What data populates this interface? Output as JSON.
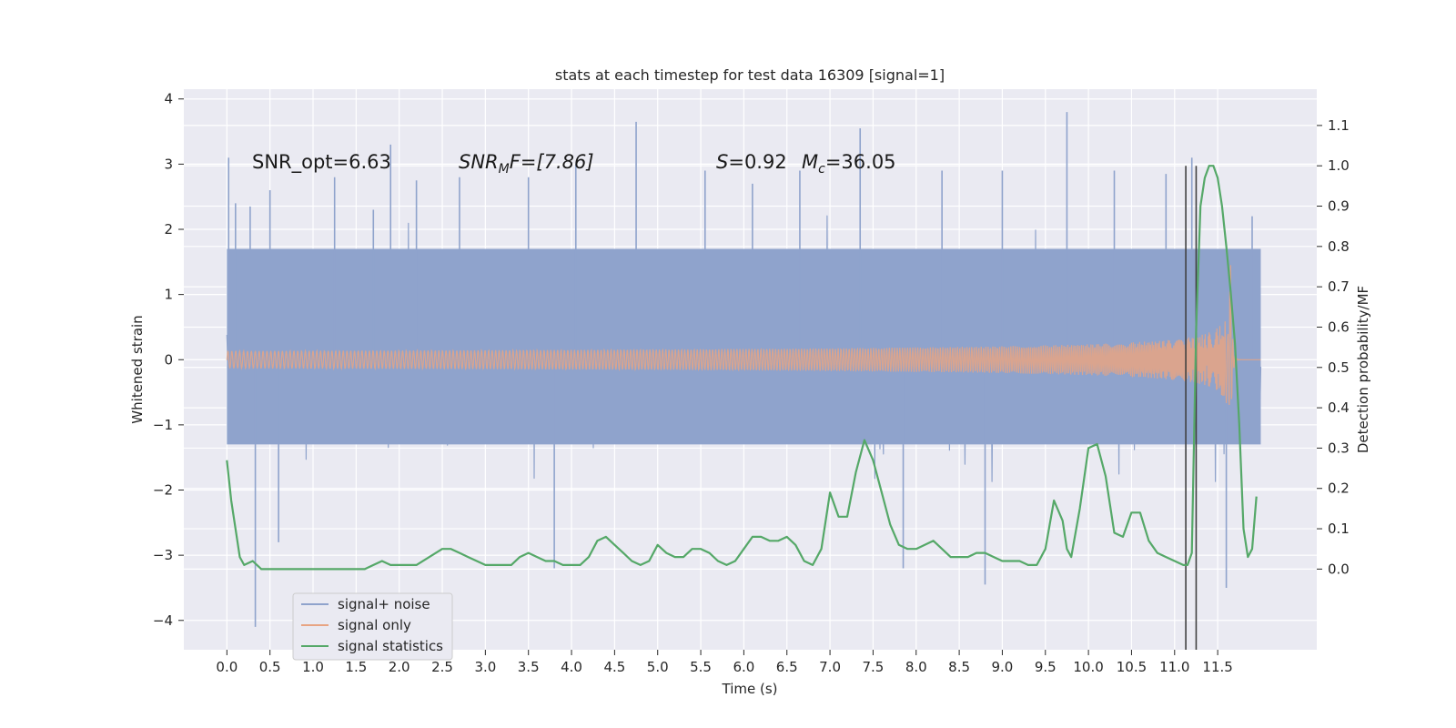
{
  "chart_data": {
    "type": "line",
    "title": "stats at each timestep for test data 16309 [signal=1]",
    "xlabel": "Time (s)",
    "ylabel_left": "Whitened strain",
    "ylabel_right": "Detection probability/MF",
    "xlim": [
      -0.5,
      12.65
    ],
    "ylim_left": [
      -4.45,
      4.15
    ],
    "ylim_right": [
      -0.2,
      1.19
    ],
    "x_ticks": [
      "0.0",
      "0.5",
      "1.0",
      "1.5",
      "2.0",
      "2.5",
      "3.0",
      "3.5",
      "4.0",
      "4.5",
      "5.0",
      "5.5",
      "6.0",
      "6.5",
      "7.0",
      "7.5",
      "8.0",
      "8.5",
      "9.0",
      "9.5",
      "10.0",
      "10.5",
      "11.0",
      "11.5"
    ],
    "y_ticks_left": [
      "−4",
      "−3",
      "−2",
      "−1",
      "0",
      "1",
      "2",
      "3",
      "4"
    ],
    "y_ticks_right": [
      "0.0",
      "0.1",
      "0.2",
      "0.3",
      "0.4",
      "0.5",
      "0.6",
      "0.7",
      "0.8",
      "0.9",
      "1.0",
      "1.1"
    ],
    "grid": true,
    "legend_position": "lower-left",
    "annotations": {
      "snr_opt": "SNR_opt=6.63",
      "snr_mf_main": "SNR",
      "snr_mf_sub": "M",
      "snr_mf_rest": "F=[7.86]",
      "s_main": "S",
      "s_rest": "=0.92",
      "mc_main": "M",
      "mc_sub": "c",
      "mc_rest": "=36.05"
    },
    "series": [
      {
        "name": "signal+ noise",
        "axis": "left",
        "color": "#8fa3cc",
        "x_range": [
          0.0,
          12.0
        ],
        "typical_band": [
          -1.3,
          1.7
        ],
        "peaks": [
          [
            0.02,
            3.1
          ],
          [
            0.1,
            2.4
          ],
          [
            0.27,
            2.35
          ],
          [
            0.33,
            -4.1
          ],
          [
            0.5,
            2.6
          ],
          [
            0.6,
            -2.8
          ],
          [
            1.25,
            2.8
          ],
          [
            1.7,
            2.3
          ],
          [
            1.9,
            3.3
          ],
          [
            2.2,
            2.75
          ],
          [
            2.7,
            2.8
          ],
          [
            3.5,
            2.8
          ],
          [
            3.8,
            -3.2
          ],
          [
            4.05,
            3.0
          ],
          [
            4.75,
            3.65
          ],
          [
            5.55,
            2.9
          ],
          [
            6.1,
            2.7
          ],
          [
            6.65,
            2.9
          ],
          [
            7.35,
            3.55
          ],
          [
            7.85,
            -3.2
          ],
          [
            8.3,
            2.9
          ],
          [
            8.8,
            -3.45
          ],
          [
            9.0,
            2.9
          ],
          [
            9.75,
            3.8
          ],
          [
            10.3,
            2.9
          ],
          [
            10.9,
            2.85
          ],
          [
            11.2,
            3.1
          ],
          [
            11.6,
            -3.5
          ],
          [
            11.9,
            2.2
          ]
        ]
      },
      {
        "name": "signal only",
        "axis": "left",
        "color": "#e8a483",
        "x_range": [
          0.0,
          12.0
        ],
        "chirp_peak_time": 11.65,
        "chirp_peak_amplitude": 1.45
      },
      {
        "name": "signal statistics",
        "axis": "right",
        "color": "#55a868",
        "x": [
          0.0,
          0.05,
          0.1,
          0.15,
          0.2,
          0.3,
          0.4,
          0.5,
          0.6,
          0.8,
          1.0,
          1.2,
          1.4,
          1.6,
          1.7,
          1.8,
          1.9,
          2.0,
          2.2,
          2.35,
          2.5,
          2.6,
          2.7,
          2.8,
          2.9,
          3.0,
          3.1,
          3.2,
          3.3,
          3.4,
          3.5,
          3.6,
          3.7,
          3.8,
          3.9,
          4.0,
          4.1,
          4.2,
          4.3,
          4.4,
          4.5,
          4.6,
          4.7,
          4.8,
          4.9,
          5.0,
          5.1,
          5.2,
          5.3,
          5.4,
          5.5,
          5.6,
          5.7,
          5.8,
          5.9,
          6.0,
          6.1,
          6.2,
          6.3,
          6.4,
          6.5,
          6.6,
          6.7,
          6.8,
          6.9,
          7.0,
          7.1,
          7.2,
          7.3,
          7.4,
          7.5,
          7.6,
          7.7,
          7.8,
          7.9,
          8.0,
          8.1,
          8.2,
          8.3,
          8.4,
          8.5,
          8.6,
          8.7,
          8.8,
          8.9,
          9.0,
          9.1,
          9.2,
          9.3,
          9.4,
          9.5,
          9.6,
          9.7,
          9.75,
          9.8,
          9.9,
          10.0,
          10.1,
          10.2,
          10.3,
          10.4,
          10.5,
          10.6,
          10.7,
          10.8,
          10.9,
          11.0,
          11.1,
          11.15,
          11.2,
          11.25,
          11.3,
          11.35,
          11.4,
          11.45,
          11.5,
          11.55,
          11.6,
          11.65,
          11.7,
          11.75,
          11.8,
          11.85,
          11.9,
          11.95
        ],
        "values": [
          0.27,
          0.17,
          0.1,
          0.03,
          0.01,
          0.02,
          0.0,
          0.0,
          0.0,
          0.0,
          0.0,
          0.0,
          0.0,
          0.0,
          0.01,
          0.02,
          0.01,
          0.01,
          0.01,
          0.03,
          0.05,
          0.05,
          0.04,
          0.03,
          0.02,
          0.01,
          0.01,
          0.01,
          0.01,
          0.03,
          0.04,
          0.03,
          0.02,
          0.02,
          0.01,
          0.01,
          0.01,
          0.03,
          0.07,
          0.08,
          0.06,
          0.04,
          0.02,
          0.01,
          0.02,
          0.06,
          0.04,
          0.03,
          0.03,
          0.05,
          0.05,
          0.04,
          0.02,
          0.01,
          0.02,
          0.05,
          0.08,
          0.08,
          0.07,
          0.07,
          0.08,
          0.06,
          0.02,
          0.01,
          0.05,
          0.19,
          0.13,
          0.13,
          0.24,
          0.32,
          0.27,
          0.19,
          0.11,
          0.06,
          0.05,
          0.05,
          0.06,
          0.07,
          0.05,
          0.03,
          0.03,
          0.03,
          0.04,
          0.04,
          0.03,
          0.02,
          0.02,
          0.02,
          0.01,
          0.01,
          0.05,
          0.17,
          0.12,
          0.05,
          0.03,
          0.15,
          0.3,
          0.31,
          0.23,
          0.09,
          0.08,
          0.14,
          0.14,
          0.07,
          0.04,
          0.03,
          0.02,
          0.01,
          0.01,
          0.04,
          0.6,
          0.9,
          0.97,
          1.0,
          1.0,
          0.97,
          0.9,
          0.8,
          0.69,
          0.56,
          0.36,
          0.1,
          0.03,
          0.05,
          0.18
        ]
      }
    ],
    "vertical_markers": {
      "color": "#404040",
      "x": [
        11.13,
        11.25
      ],
      "from": [
        -0.2,
        1.0
      ]
    }
  }
}
